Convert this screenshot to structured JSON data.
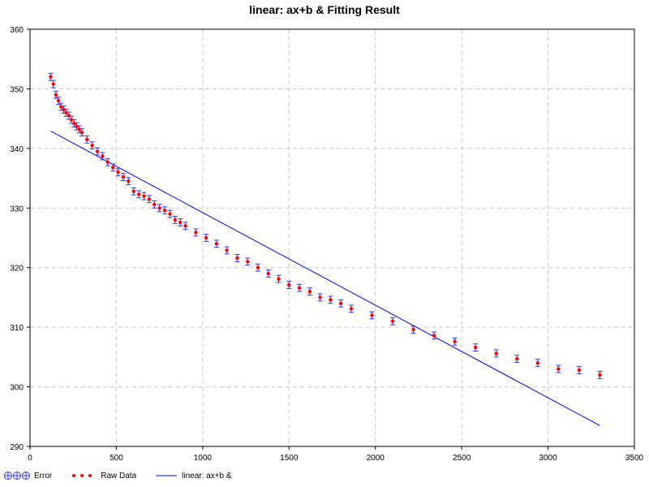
{
  "chart_data": {
    "type": "scatter",
    "title": "linear: ax+b &  Fitting Result",
    "xlabel": "",
    "ylabel": "",
    "xlim": [
      0,
      3500
    ],
    "ylim": [
      290,
      360
    ],
    "x_ticks": [
      "0",
      "500",
      "1000",
      "1500",
      "2000",
      "2500",
      "3000",
      "3500"
    ],
    "y_ticks": [
      "290",
      "300",
      "310",
      "320",
      "330",
      "340",
      "350",
      "360"
    ],
    "grid": true,
    "legend_position": "bottom-left",
    "colors": {
      "raw_data": "#ff0000",
      "error": "#3333ff",
      "fit": "#0000ff"
    },
    "series": [
      {
        "name": "Raw Data",
        "error": 0.6,
        "points": [
          [
            120,
            352.0
          ],
          [
            135,
            350.8
          ],
          [
            150,
            349.0
          ],
          [
            165,
            348.0
          ],
          [
            180,
            347.0
          ],
          [
            195,
            346.5
          ],
          [
            210,
            346.0
          ],
          [
            225,
            345.5
          ],
          [
            240,
            344.8
          ],
          [
            255,
            344.2
          ],
          [
            270,
            343.7
          ],
          [
            285,
            343.2
          ],
          [
            300,
            342.7
          ],
          [
            330,
            341.5
          ],
          [
            360,
            340.5
          ],
          [
            390,
            339.5
          ],
          [
            420,
            338.7
          ],
          [
            450,
            337.7
          ],
          [
            480,
            336.8
          ],
          [
            510,
            336.0
          ],
          [
            540,
            335.2
          ],
          [
            570,
            334.5
          ],
          [
            600,
            332.8
          ],
          [
            630,
            332.3
          ],
          [
            660,
            332.0
          ],
          [
            690,
            331.5
          ],
          [
            720,
            330.6
          ],
          [
            750,
            330.0
          ],
          [
            780,
            329.6
          ],
          [
            810,
            329.0
          ],
          [
            840,
            328.0
          ],
          [
            870,
            327.6
          ],
          [
            900,
            327.0
          ],
          [
            960,
            325.9
          ],
          [
            1020,
            325.0
          ],
          [
            1080,
            324.0
          ],
          [
            1140,
            322.9
          ],
          [
            1200,
            321.6
          ],
          [
            1260,
            321.0
          ],
          [
            1320,
            320.0
          ],
          [
            1380,
            319.0
          ],
          [
            1440,
            318.1
          ],
          [
            1500,
            317.1
          ],
          [
            1560,
            316.6
          ],
          [
            1620,
            316.0
          ],
          [
            1680,
            315.0
          ],
          [
            1740,
            314.6
          ],
          [
            1800,
            314.0
          ],
          [
            1860,
            313.1
          ],
          [
            1980,
            312.0
          ],
          [
            2100,
            311.0
          ],
          [
            2220,
            309.6
          ],
          [
            2340,
            308.6
          ],
          [
            2460,
            307.6
          ],
          [
            2580,
            306.6
          ],
          [
            2700,
            305.6
          ],
          [
            2820,
            304.7
          ],
          [
            2940,
            304.0
          ],
          [
            3060,
            303.0
          ],
          [
            3180,
            302.8
          ],
          [
            3300,
            302.0
          ]
        ]
      },
      {
        "name": "linear: ax+b &",
        "points": [
          [
            120,
            342.9
          ],
          [
            3300,
            293.5
          ]
        ]
      }
    ]
  },
  "legend": {
    "error_label": "Error",
    "raw_label": "Raw Data",
    "fit_label": "linear: ax+b &"
  }
}
